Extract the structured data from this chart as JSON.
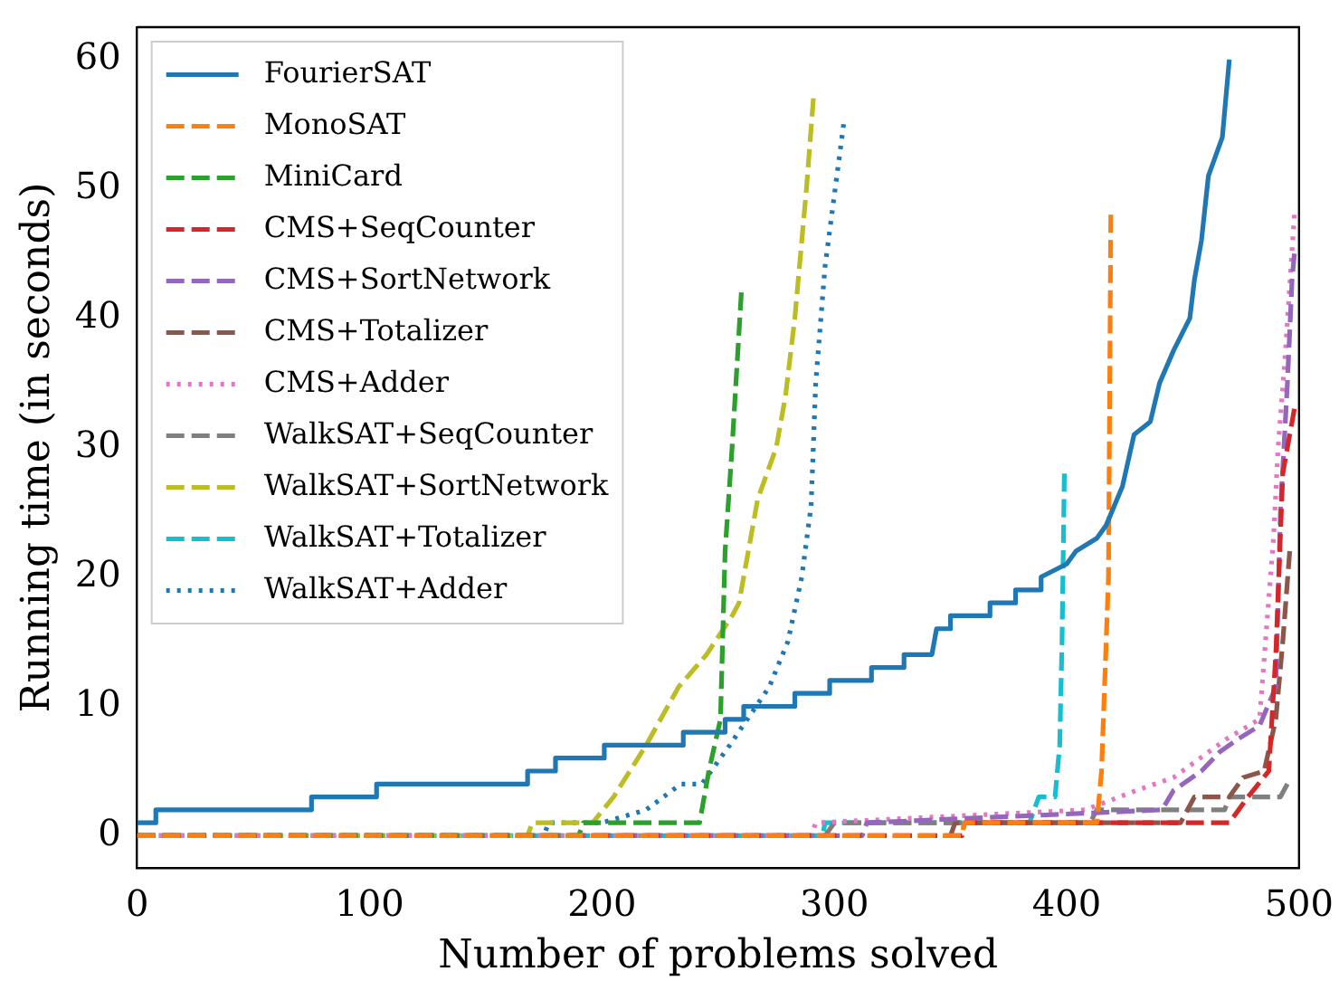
{
  "chart_data": {
    "type": "line",
    "xlabel": "Number of problems solved",
    "ylabel": "Running time (in seconds)",
    "xlim": [
      0,
      500
    ],
    "ylim": [
      -2.5,
      62.5
    ],
    "xticks": [
      0,
      100,
      200,
      300,
      400,
      500
    ],
    "yticks": [
      0,
      10,
      20,
      30,
      40,
      50,
      60
    ],
    "grid": false,
    "legend": "top left",
    "marker": "none",
    "series": [
      {
        "name": "FourierSAT",
        "color": "#1f77b4",
        "line_style": "solid",
        "x": [
          0,
          8,
          8,
          75,
          75,
          103,
          103,
          168,
          168,
          180,
          180,
          201,
          201,
          235,
          235,
          253,
          253,
          261,
          261,
          283,
          283,
          298,
          298,
          316,
          316,
          330,
          330,
          342,
          344,
          350,
          350,
          367,
          367,
          378,
          378,
          389,
          389,
          400,
          404,
          413,
          417,
          424,
          429,
          436,
          440,
          446,
          453,
          455,
          458,
          461,
          465,
          467,
          470
        ],
        "values": [
          1,
          1,
          2,
          2,
          3,
          3,
          4,
          4,
          5,
          5,
          6,
          6,
          7,
          7,
          8,
          8,
          9,
          9,
          10,
          10,
          11,
          11,
          12,
          12,
          13,
          13,
          14,
          14,
          16,
          16,
          17,
          17,
          18,
          18,
          19,
          19,
          20,
          21,
          22,
          23,
          24,
          27,
          31,
          32,
          35,
          37.5,
          40,
          43,
          46,
          51,
          53,
          54,
          60
        ]
      },
      {
        "name": "MonoSAT",
        "color": "#ff7f0e",
        "line_style": "dashed",
        "x": [
          0,
          355,
          356,
          413,
          415,
          418,
          419
        ],
        "values": [
          0,
          0,
          1,
          1,
          5,
          20,
          48
        ]
      },
      {
        "name": "MiniCard",
        "color": "#2ca02c",
        "line_style": "dashed",
        "x": [
          0,
          190,
          192,
          242,
          246,
          251,
          253,
          256,
          260
        ],
        "values": [
          0,
          0,
          1,
          1,
          5,
          9,
          22,
          30,
          42
        ]
      },
      {
        "name": "CMS+SeqCounter",
        "color": "#d62728",
        "line_style": "dashed",
        "x": [
          0,
          355,
          356,
          470,
          478,
          487,
          490,
          493,
          498
        ],
        "values": [
          0,
          0,
          1,
          1,
          3,
          5,
          14,
          28,
          33
        ]
      },
      {
        "name": "CMS+SortNetwork",
        "color": "#9467bd",
        "line_style": "dashed",
        "x": [
          0,
          312,
          314,
          441,
          446,
          458,
          466,
          474,
          483,
          490,
          492,
          495,
          497,
          498
        ],
        "values": [
          0,
          0,
          1,
          2,
          3.5,
          5,
          6.5,
          7.5,
          8.5,
          11.5,
          25,
          35,
          43,
          45
        ]
      },
      {
        "name": "CMS+Totalizer",
        "color": "#8c564b",
        "line_style": "dashed",
        "x": [
          350,
          352,
          449,
          455,
          470,
          476,
          485,
          490,
          493,
          496
        ],
        "values": [
          0,
          1,
          1,
          3,
          3,
          4.5,
          5,
          9,
          15,
          22
        ]
      },
      {
        "name": "CMS+Adder",
        "color": "#e377c2",
        "line_style": "dotted",
        "x": [
          0,
          290,
          292,
          408,
          430,
          446,
          469,
          483,
          489,
          491,
          494,
          498
        ],
        "values": [
          0,
          0,
          1,
          2,
          3.5,
          4.5,
          7.5,
          9,
          23,
          30,
          37,
          48
        ]
      },
      {
        "name": "WalkSAT+SeqCounter",
        "color": "#7f7f7f",
        "line_style": "dashed",
        "x": [
          296,
          300,
          410,
          413,
          468,
          470,
          492,
          495
        ],
        "values": [
          0,
          1,
          1,
          2,
          2,
          3,
          3,
          4
        ]
      },
      {
        "name": "WalkSAT+SortNetwork",
        "color": "#bcbd22",
        "line_style": "dashed",
        "x": [
          0,
          168,
          170,
          196,
          205,
          219,
          233,
          245,
          256,
          259,
          267,
          275,
          279,
          283,
          288,
          291
        ],
        "values": [
          0,
          0,
          1,
          1,
          3,
          7,
          11.5,
          14,
          17,
          18,
          26,
          30,
          34,
          40,
          50,
          57
        ]
      },
      {
        "name": "WalkSAT+Totalizer",
        "color": "#17becf",
        "line_style": "dashed",
        "x": [
          0,
          295,
          296,
          384,
          388,
          395,
          397,
          398,
          399
        ],
        "values": [
          0,
          0,
          1,
          1,
          3,
          3,
          7,
          15,
          28
        ]
      },
      {
        "name": "WalkSAT+Adder",
        "color": "#1f77b4",
        "line_style": "dotted",
        "x": [
          0,
          175,
          177,
          200,
          219,
          234,
          243,
          255,
          272,
          280,
          286,
          290,
          292,
          296,
          304
        ],
        "values": [
          0,
          0,
          1,
          1,
          2,
          4,
          4,
          7,
          11.5,
          15,
          20,
          25.5,
          35,
          44,
          55
        ]
      }
    ]
  }
}
